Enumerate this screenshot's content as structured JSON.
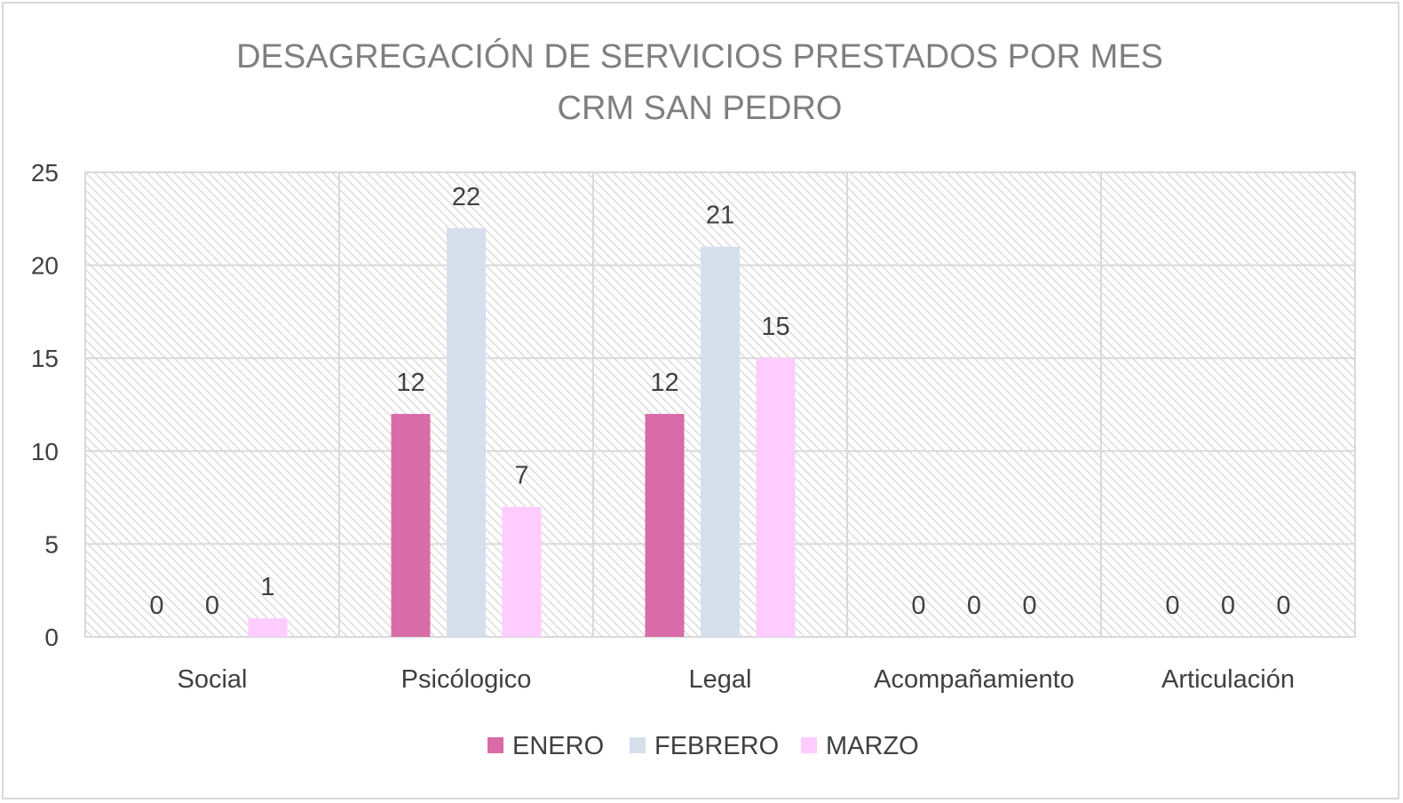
{
  "chart_data": {
    "type": "bar",
    "title": "DESAGREGACIÓN DE SERVICIOS PRESTADOS POR MES",
    "subtitle": "CRM SAN PEDRO",
    "categories": [
      "Social",
      "Psicólogico",
      "Legal",
      "Acompañamiento",
      "Articulación"
    ],
    "series": [
      {
        "name": "ENERO",
        "color": "#d96ba8",
        "values": [
          0,
          12,
          12,
          0,
          0
        ]
      },
      {
        "name": "FEBRERO",
        "color": "#d6dfec",
        "values": [
          0,
          22,
          21,
          0,
          0
        ]
      },
      {
        "name": "MARZO",
        "color": "#ffccff",
        "values": [
          1,
          7,
          15,
          0,
          0
        ]
      }
    ],
    "ylim": [
      0,
      25
    ],
    "yticks": [
      0,
      5,
      10,
      15,
      20,
      25
    ],
    "grid": true,
    "data_labels": true,
    "legend_position": "bottom"
  }
}
